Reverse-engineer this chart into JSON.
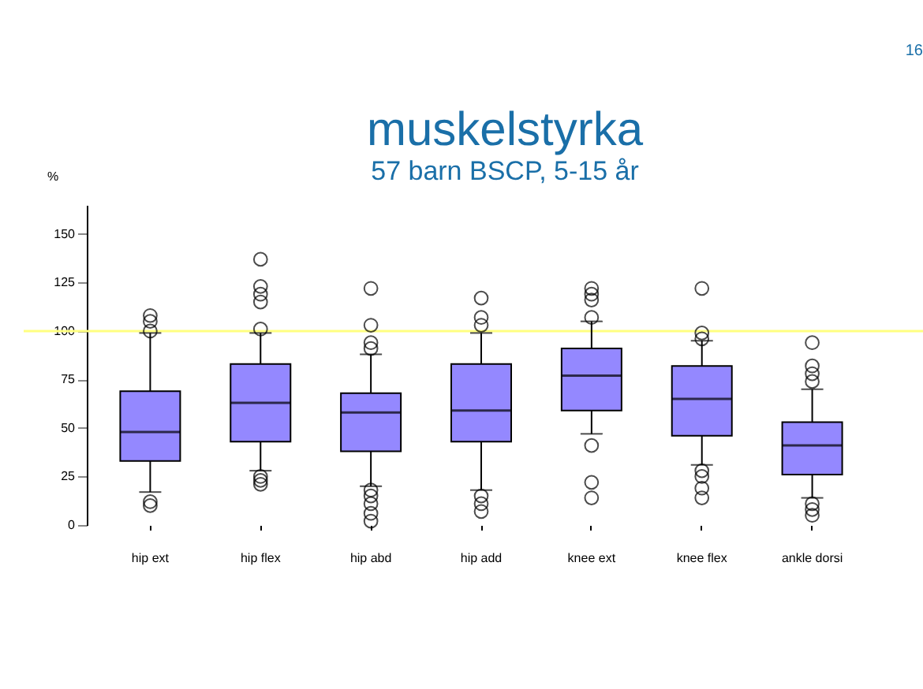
{
  "chart_data": {
    "type": "box",
    "title": "muskelstyrka",
    "subtitle": "57 barn BSCP, 5-15 år",
    "ylabel": "%",
    "categories": [
      "hip ext",
      "hip flex",
      "hip abd",
      "hip add",
      "knee ext",
      "knee flex",
      "ankle dorsi"
    ],
    "color": "#9488ff",
    "boxes": [
      {
        "low": 17,
        "q1": 33,
        "median": 48,
        "q3": 69,
        "high": 99,
        "outliers": [
          108,
          105,
          100,
          12,
          10
        ]
      },
      {
        "low": 28,
        "q1": 43,
        "median": 63,
        "q3": 83,
        "high": 99,
        "outliers": [
          137,
          123,
          119,
          115,
          101,
          25,
          23,
          21
        ]
      },
      {
        "low": 20,
        "q1": 38,
        "median": 58,
        "q3": 68,
        "high": 88,
        "outliers": [
          122,
          103,
          94,
          91,
          18,
          15,
          11,
          6,
          2
        ]
      },
      {
        "low": 18,
        "q1": 43,
        "median": 59,
        "q3": 83,
        "high": 99,
        "outliers": [
          117,
          107,
          103,
          15,
          11,
          7
        ]
      },
      {
        "low": 47,
        "q1": 59,
        "median": 77,
        "q3": 91,
        "high": 105,
        "outliers": [
          122,
          119,
          116,
          107,
          41,
          22,
          14
        ]
      },
      {
        "low": 31,
        "q1": 46,
        "median": 65,
        "q3": 82,
        "high": 95,
        "outliers": [
          122,
          99,
          96,
          28,
          25,
          19,
          14
        ]
      },
      {
        "low": 14,
        "q1": 26,
        "median": 41,
        "q3": 53,
        "high": 70,
        "outliers": [
          94,
          82,
          78,
          74,
          11,
          8,
          5
        ]
      }
    ],
    "ylim": [
      0,
      165
    ],
    "yticks": [
      0,
      25,
      50,
      75,
      100,
      125,
      150
    ],
    "grid": false,
    "legend": false,
    "ref_lines": [
      {
        "axis": "y",
        "value": 100,
        "color": "#ffff80"
      }
    ],
    "annotations": [
      "16"
    ]
  }
}
